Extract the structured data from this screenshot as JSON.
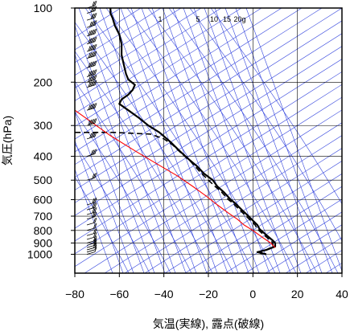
{
  "chart_data": {
    "type": "line",
    "chart_kind": "skew-T log-p sounding diagram",
    "xlabel": "気温(実線), 露点(破線)",
    "ylabel": "気圧(hPa)",
    "xlim": [
      -80,
      40
    ],
    "ylim": [
      1050,
      100
    ],
    "y_scale": "log",
    "x_ticks": [
      -80,
      -60,
      -40,
      -20,
      0,
      20,
      40
    ],
    "x_tick_labels": [
      "−80",
      "−60",
      "−40",
      "−20",
      "0",
      "20",
      "40"
    ],
    "y_ticks": [
      1000,
      900,
      800,
      700,
      600,
      500,
      400,
      300,
      200,
      100
    ],
    "y_tick_labels": [
      "1000",
      "900",
      "800",
      "700",
      "600",
      "500",
      "400",
      "300",
      "200",
      "100"
    ],
    "mixing_ratio_labels": [
      "1",
      "5",
      "10",
      "15",
      "20g"
    ],
    "grid": true,
    "colors": {
      "temperature": "#000000",
      "dewpoint": "#000000",
      "parcel": "#ff0000",
      "background_lines": "#3344dd",
      "grid": "#000000",
      "wind_barbs": "#000000"
    },
    "series": [
      {
        "key": "temperature",
        "style": "solid",
        "points": [
          [
            6,
            1000
          ],
          [
            2,
            980
          ],
          [
            6,
            960
          ],
          [
            10,
            930
          ],
          [
            10,
            900
          ],
          [
            9,
            880
          ],
          [
            7,
            850
          ],
          [
            5,
            820
          ],
          [
            3,
            790
          ],
          [
            2,
            760
          ],
          [
            0,
            730
          ],
          [
            -2,
            700
          ],
          [
            -5,
            660
          ],
          [
            -8,
            620
          ],
          [
            -10,
            600
          ],
          [
            -13,
            560
          ],
          [
            -16,
            530
          ],
          [
            -18,
            500
          ],
          [
            -22,
            470
          ],
          [
            -25,
            440
          ],
          [
            -29,
            410
          ],
          [
            -33,
            380
          ],
          [
            -37,
            350
          ],
          [
            -42,
            320
          ],
          [
            -47,
            300
          ],
          [
            -51,
            280
          ],
          [
            -56,
            260
          ],
          [
            -60,
            245
          ],
          [
            -59,
            235
          ],
          [
            -56,
            225
          ],
          [
            -54,
            215
          ],
          [
            -53,
            205
          ],
          [
            -56,
            195
          ],
          [
            -57,
            185
          ],
          [
            -58,
            170
          ],
          [
            -59,
            155
          ],
          [
            -59,
            140
          ],
          [
            -60,
            128
          ],
          [
            -62,
            118
          ],
          [
            -63,
            110
          ],
          [
            -64,
            105
          ],
          [
            -64,
            100
          ]
        ]
      },
      {
        "key": "dewpoint",
        "style": "dashed",
        "points": [
          [
            4,
            1000
          ],
          [
            3,
            980
          ],
          [
            6,
            960
          ],
          [
            9,
            930
          ],
          [
            9,
            900
          ],
          [
            8,
            880
          ],
          [
            6,
            850
          ],
          [
            4,
            820
          ],
          [
            2,
            790
          ],
          [
            1,
            760
          ],
          [
            -1,
            730
          ],
          [
            -3,
            700
          ],
          [
            -6,
            660
          ],
          [
            -9,
            620
          ],
          [
            -11,
            600
          ],
          [
            -14,
            560
          ],
          [
            -17,
            530
          ],
          [
            -20,
            500
          ],
          [
            -24,
            460
          ],
          [
            -28,
            420
          ],
          [
            -32,
            390
          ],
          [
            -36,
            360
          ],
          [
            -40,
            340
          ],
          [
            -46,
            325
          ],
          [
            -63,
            320
          ],
          [
            -80,
            320
          ]
        ]
      },
      {
        "key": "parcel",
        "style": "solid",
        "points": [
          [
            10,
            940
          ],
          [
            8,
            900
          ],
          [
            4,
            850
          ],
          [
            0,
            800
          ],
          [
            -4,
            760
          ],
          [
            -7,
            720
          ],
          [
            -11,
            680
          ],
          [
            -16,
            630
          ],
          [
            -21,
            580
          ],
          [
            -27,
            530
          ],
          [
            -34,
            480
          ],
          [
            -43,
            430
          ],
          [
            -53,
            380
          ],
          [
            -64,
            330
          ],
          [
            -75,
            280
          ],
          [
            -80,
            260
          ]
        ]
      }
    ],
    "wind_barbs": [
      {
        "p": 1000,
        "u": 2,
        "v": 4
      },
      {
        "p": 980,
        "u": 3,
        "v": 6
      },
      {
        "p": 960,
        "u": 4,
        "v": 7
      },
      {
        "p": 940,
        "u": 5,
        "v": 8
      },
      {
        "p": 920,
        "u": 6,
        "v": 8
      },
      {
        "p": 900,
        "u": 7,
        "v": 8
      },
      {
        "p": 870,
        "u": 8,
        "v": 7
      },
      {
        "p": 840,
        "u": 9,
        "v": 6
      },
      {
        "p": 800,
        "u": 10,
        "v": 5
      },
      {
        "p": 760,
        "u": 11,
        "v": 4
      },
      {
        "p": 720,
        "u": 12,
        "v": 4
      },
      {
        "p": 690,
        "u": 12,
        "v": 5
      },
      {
        "p": 660,
        "u": 12,
        "v": 6
      },
      {
        "p": 630,
        "u": 12,
        "v": 6
      },
      {
        "p": 500,
        "u": 15,
        "v": 5
      },
      {
        "p": 400,
        "u": 18,
        "v": 4
      },
      {
        "p": 340,
        "u": 25,
        "v": 3
      },
      {
        "p": 300,
        "u": 28,
        "v": 3
      },
      {
        "p": 260,
        "u": 30,
        "v": 2
      },
      {
        "p": 210,
        "u": 32,
        "v": 2
      },
      {
        "p": 200,
        "u": 34,
        "v": 2
      },
      {
        "p": 190,
        "u": 36,
        "v": 2
      },
      {
        "p": 175,
        "u": 38,
        "v": 2
      },
      {
        "p": 160,
        "u": 36,
        "v": 2
      },
      {
        "p": 150,
        "u": 34,
        "v": 2
      },
      {
        "p": 140,
        "u": 30,
        "v": 2
      },
      {
        "p": 130,
        "u": 28,
        "v": 2
      },
      {
        "p": 120,
        "u": 26,
        "v": 2
      },
      {
        "p": 112,
        "u": 22,
        "v": 2
      },
      {
        "p": 105,
        "u": 18,
        "v": 2
      },
      {
        "p": 100,
        "u": 15,
        "v": 2
      }
    ]
  }
}
